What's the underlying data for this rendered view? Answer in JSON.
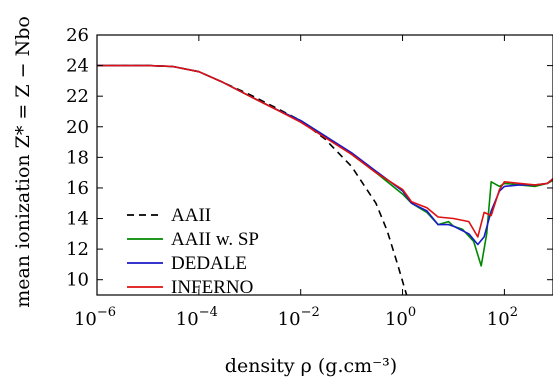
{
  "chart_data": {
    "type": "line",
    "xlabel": "density ρ (g.cm⁻³)",
    "ylabel": "mean ionization Z* = Z − Nbo",
    "xscale": "log",
    "xlim": [
      1e-06,
      900
    ],
    "ylim": [
      9,
      26
    ],
    "y_ticks": [
      10,
      12,
      14,
      16,
      18,
      20,
      22,
      24,
      26
    ],
    "x_ticks": [
      {
        "base": "10",
        "exp": "−6",
        "value": 1e-06
      },
      {
        "base": "10",
        "exp": "−4",
        "value": 0.0001
      },
      {
        "base": "10",
        "exp": "−2",
        "value": 0.01
      },
      {
        "base": "10",
        "exp": "0",
        "value": 1
      },
      {
        "base": "10",
        "exp": "2",
        "value": 100
      }
    ],
    "legend_position": "lower-left",
    "series": [
      {
        "name": "AAII",
        "color": "#000000",
        "style": "dashed",
        "points": [
          [
            1e-06,
            24
          ],
          [
            1e-05,
            24
          ],
          [
            3e-05,
            23.95
          ],
          [
            0.0001,
            23.6
          ],
          [
            0.0003,
            22.9
          ],
          [
            0.001,
            22.1
          ],
          [
            0.003,
            21.3
          ],
          [
            0.01,
            20.4
          ],
          [
            0.03,
            19.2
          ],
          [
            0.1,
            17.4
          ],
          [
            0.3,
            15.0
          ],
          [
            0.5,
            13.2
          ],
          [
            0.8,
            11.0
          ],
          [
            1.2,
            9.0
          ]
        ]
      },
      {
        "name": "AAII w. SP",
        "color": "#008800",
        "style": "solid",
        "points": [
          [
            1e-06,
            24
          ],
          [
            1e-05,
            24
          ],
          [
            3e-05,
            23.95
          ],
          [
            0.0001,
            23.6
          ],
          [
            0.0003,
            22.9
          ],
          [
            0.001,
            22.0
          ],
          [
            0.003,
            21.2
          ],
          [
            0.01,
            20.4
          ],
          [
            0.03,
            19.4
          ],
          [
            0.1,
            18.2
          ],
          [
            0.3,
            17.0
          ],
          [
            1,
            15.6
          ],
          [
            1.5,
            15.0
          ],
          [
            3,
            14.4
          ],
          [
            5,
            13.6
          ],
          [
            8,
            13.8
          ],
          [
            10,
            13.5
          ],
          [
            15,
            13.3
          ],
          [
            25,
            12.5
          ],
          [
            35,
            10.9
          ],
          [
            45,
            13.0
          ],
          [
            55,
            16.4
          ],
          [
            80,
            16.1
          ],
          [
            100,
            16.3
          ],
          [
            200,
            16.2
          ],
          [
            400,
            16.1
          ],
          [
            700,
            16.3
          ],
          [
            900,
            16.5
          ]
        ]
      },
      {
        "name": "DEDALE",
        "color": "#1a1ac8",
        "style": "solid",
        "points": [
          [
            1e-06,
            24
          ],
          [
            1e-05,
            24
          ],
          [
            3e-05,
            23.95
          ],
          [
            0.0001,
            23.6
          ],
          [
            0.0003,
            22.9
          ],
          [
            0.001,
            22.0
          ],
          [
            0.003,
            21.2
          ],
          [
            0.01,
            20.4
          ],
          [
            0.03,
            19.4
          ],
          [
            0.1,
            18.3
          ],
          [
            0.3,
            17.1
          ],
          [
            1,
            15.8
          ],
          [
            1.5,
            15.0
          ],
          [
            3,
            14.5
          ],
          [
            5,
            13.6
          ],
          [
            8,
            13.6
          ],
          [
            10,
            13.5
          ],
          [
            20,
            13.0
          ],
          [
            30,
            12.3
          ],
          [
            40,
            12.8
          ],
          [
            55,
            14.5
          ],
          [
            80,
            15.8
          ],
          [
            100,
            16.1
          ],
          [
            200,
            16.2
          ],
          [
            400,
            16.2
          ],
          [
            700,
            16.3
          ],
          [
            900,
            16.6
          ]
        ]
      },
      {
        "name": "INFERNO",
        "color": "#dd1111",
        "style": "solid",
        "points": [
          [
            1e-06,
            24
          ],
          [
            1e-05,
            24
          ],
          [
            3e-05,
            23.95
          ],
          [
            0.0001,
            23.6
          ],
          [
            0.0003,
            22.9
          ],
          [
            0.001,
            22.0
          ],
          [
            0.003,
            21.2
          ],
          [
            0.01,
            20.3
          ],
          [
            0.03,
            19.3
          ],
          [
            0.1,
            18.2
          ],
          [
            0.3,
            17.0
          ],
          [
            1,
            15.9
          ],
          [
            1.5,
            15.1
          ],
          [
            3,
            14.7
          ],
          [
            5,
            14.1
          ],
          [
            10,
            14.0
          ],
          [
            20,
            13.8
          ],
          [
            30,
            12.8
          ],
          [
            40,
            14.4
          ],
          [
            55,
            14.2
          ],
          [
            80,
            15.9
          ],
          [
            100,
            16.4
          ],
          [
            200,
            16.3
          ],
          [
            400,
            16.2
          ],
          [
            700,
            16.3
          ],
          [
            900,
            16.6
          ]
        ]
      }
    ]
  }
}
